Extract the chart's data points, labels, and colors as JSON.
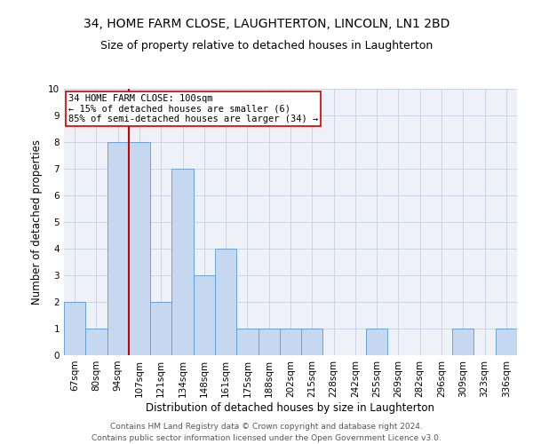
{
  "title": "34, HOME FARM CLOSE, LAUGHTERTON, LINCOLN, LN1 2BD",
  "subtitle": "Size of property relative to detached houses in Laughterton",
  "xlabel": "Distribution of detached houses by size in Laughterton",
  "ylabel": "Number of detached properties",
  "categories": [
    "67sqm",
    "80sqm",
    "94sqm",
    "107sqm",
    "121sqm",
    "134sqm",
    "148sqm",
    "161sqm",
    "175sqm",
    "188sqm",
    "202sqm",
    "215sqm",
    "228sqm",
    "242sqm",
    "255sqm",
    "269sqm",
    "282sqm",
    "296sqm",
    "309sqm",
    "323sqm",
    "336sqm"
  ],
  "values": [
    2,
    1,
    8,
    8,
    2,
    7,
    3,
    4,
    1,
    1,
    1,
    1,
    0,
    0,
    1,
    0,
    0,
    0,
    1,
    0,
    1
  ],
  "bar_color": "#c5d8f0",
  "bar_edge_color": "#5b9bd5",
  "vline_index": 2.5,
  "annotation_line1": "34 HOME FARM CLOSE: 100sqm",
  "annotation_line2": "← 15% of detached houses are smaller (6)",
  "annotation_line3": "85% of semi-detached houses are larger (34) →",
  "vline_color": "#cc0000",
  "annotation_box_color": "#cc0000",
  "ylim": [
    0,
    10
  ],
  "yticks": [
    0,
    1,
    2,
    3,
    4,
    5,
    6,
    7,
    8,
    9,
    10
  ],
  "footer_line1": "Contains HM Land Registry data © Crown copyright and database right 2024.",
  "footer_line2": "Contains public sector information licensed under the Open Government Licence v3.0.",
  "bg_color": "#eef2f8",
  "grid_color": "#c8d0de",
  "title_fontsize": 10,
  "subtitle_fontsize": 9,
  "axis_label_fontsize": 8.5,
  "tick_fontsize": 7.5,
  "footer_fontsize": 6.5,
  "annotation_fontsize": 7.5
}
